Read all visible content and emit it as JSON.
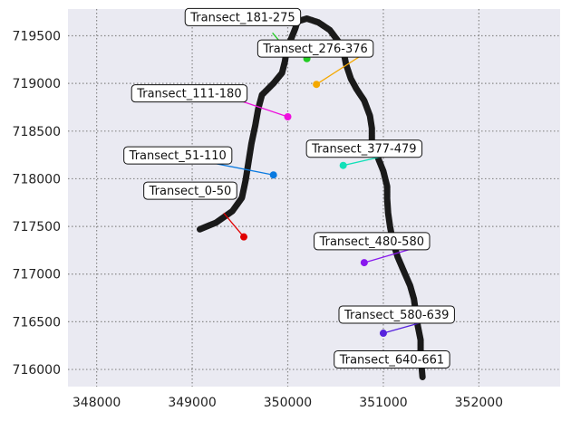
{
  "chart_data": {
    "type": "scatter",
    "title": "",
    "xlabel": "",
    "ylabel": "",
    "xlim": [
      347700,
      352850
    ],
    "ylim": [
      715820,
      719780
    ],
    "xticks": [
      348000,
      349000,
      350000,
      351000,
      352000
    ],
    "yticks": [
      716000,
      716500,
      717000,
      717500,
      718000,
      718500,
      719000,
      719500
    ],
    "grid": true,
    "background": "#eaeaf2",
    "shoreline": {
      "color": "#1a1a1a",
      "points": [
        [
          349080,
          717470
        ],
        [
          349250,
          717540
        ],
        [
          349420,
          717660
        ],
        [
          349520,
          717800
        ],
        [
          349560,
          717990
        ],
        [
          349590,
          718180
        ],
        [
          349620,
          718370
        ],
        [
          349660,
          718560
        ],
        [
          349690,
          718730
        ],
        [
          349730,
          718880
        ],
        [
          349850,
          719000
        ],
        [
          349940,
          719110
        ],
        [
          349970,
          719230
        ],
        [
          349990,
          719360
        ],
        [
          350040,
          719480
        ],
        [
          350080,
          719580
        ],
        [
          350100,
          719650
        ],
        [
          350200,
          719680
        ],
        [
          350320,
          719640
        ],
        [
          350440,
          719560
        ],
        [
          350530,
          719440
        ],
        [
          350590,
          719300
        ],
        [
          350610,
          719200
        ],
        [
          350660,
          719050
        ],
        [
          350720,
          718940
        ],
        [
          350800,
          718820
        ],
        [
          350860,
          718660
        ],
        [
          350880,
          718530
        ],
        [
          350880,
          718400
        ],
        [
          350940,
          718230
        ],
        [
          351000,
          718080
        ],
        [
          351040,
          717920
        ],
        [
          351040,
          717790
        ],
        [
          351050,
          717640
        ],
        [
          351070,
          717500
        ],
        [
          351100,
          717340
        ],
        [
          351150,
          717180
        ],
        [
          351210,
          717040
        ],
        [
          351280,
          716880
        ],
        [
          351320,
          716740
        ],
        [
          351340,
          716600
        ],
        [
          351360,
          716460
        ],
        [
          351390,
          716310
        ],
        [
          351390,
          716160
        ],
        [
          351400,
          716030
        ],
        [
          351410,
          715920
        ]
      ]
    },
    "transects": [
      {
        "name": "Transect_0-50",
        "point": [
          349540,
          717390
        ],
        "line_end": [
          349330,
          717640
        ],
        "label_anchor": [
          348980,
          717880
        ],
        "color": "#e00000"
      },
      {
        "name": "Transect_51-110",
        "point": [
          349850,
          718040
        ],
        "line_end": [
          349140,
          718180
        ],
        "label_anchor": [
          348850,
          718250
        ],
        "color": "#0a7ae0"
      },
      {
        "name": "Transect_111-180",
        "point": [
          350000,
          718650
        ],
        "line_end": [
          349380,
          718860
        ],
        "label_anchor": [
          348970,
          718900
        ],
        "color": "#ee10dd"
      },
      {
        "name": "Transect_181-275",
        "point": [
          350000,
          719340
        ],
        "line_end": [
          349840,
          719530
        ],
        "label_anchor": [
          349530,
          719700
        ],
        "color": "#22cc22"
      },
      {
        "name": "Transect_276-376",
        "point": [
          350200,
          719260
        ],
        "line_end": [
          350200,
          719370
        ],
        "label_anchor": [
          350290,
          719370
        ],
        "color": "#22cc22"
      },
      {
        "name": "Transect_276-376-line",
        "point": [
          350300,
          718990
        ],
        "line_end": [
          350780,
          719300
        ],
        "label_anchor": null,
        "color": "#f4a800"
      },
      {
        "name": "Transect_377-479",
        "point": [
          350580,
          718140
        ],
        "line_end": [
          351020,
          718240
        ],
        "label_anchor": [
          350800,
          718320
        ],
        "color": "#11e0b8"
      },
      {
        "name": "Transect_480-580",
        "point": [
          350800,
          717120
        ],
        "line_end": [
          351280,
          717260
        ],
        "label_anchor": [
          350880,
          717350
        ],
        "color": "#8818ee"
      },
      {
        "name": "Transect_580-639",
        "point": [
          351000,
          716380
        ],
        "line_end": [
          351460,
          716510
        ],
        "label_anchor": [
          351140,
          716580
        ],
        "color": "#5522dd"
      },
      {
        "name": "Transect_640-661",
        "point": null,
        "line_end": null,
        "label_anchor": [
          351090,
          716110
        ],
        "color": "#1a1a1a"
      }
    ],
    "labels": [
      {
        "text": "Transect_0-50"
      },
      {
        "text": "Transect_51-110"
      },
      {
        "text": "Transect_111-180"
      },
      {
        "text": "Transect_181-275"
      },
      {
        "text": "Transect_276-376"
      },
      {
        "text": "Transect_377-479"
      },
      {
        "text": "Transect_480-580"
      },
      {
        "text": "Transect_580-639"
      },
      {
        "text": "Transect_640-661"
      }
    ]
  }
}
